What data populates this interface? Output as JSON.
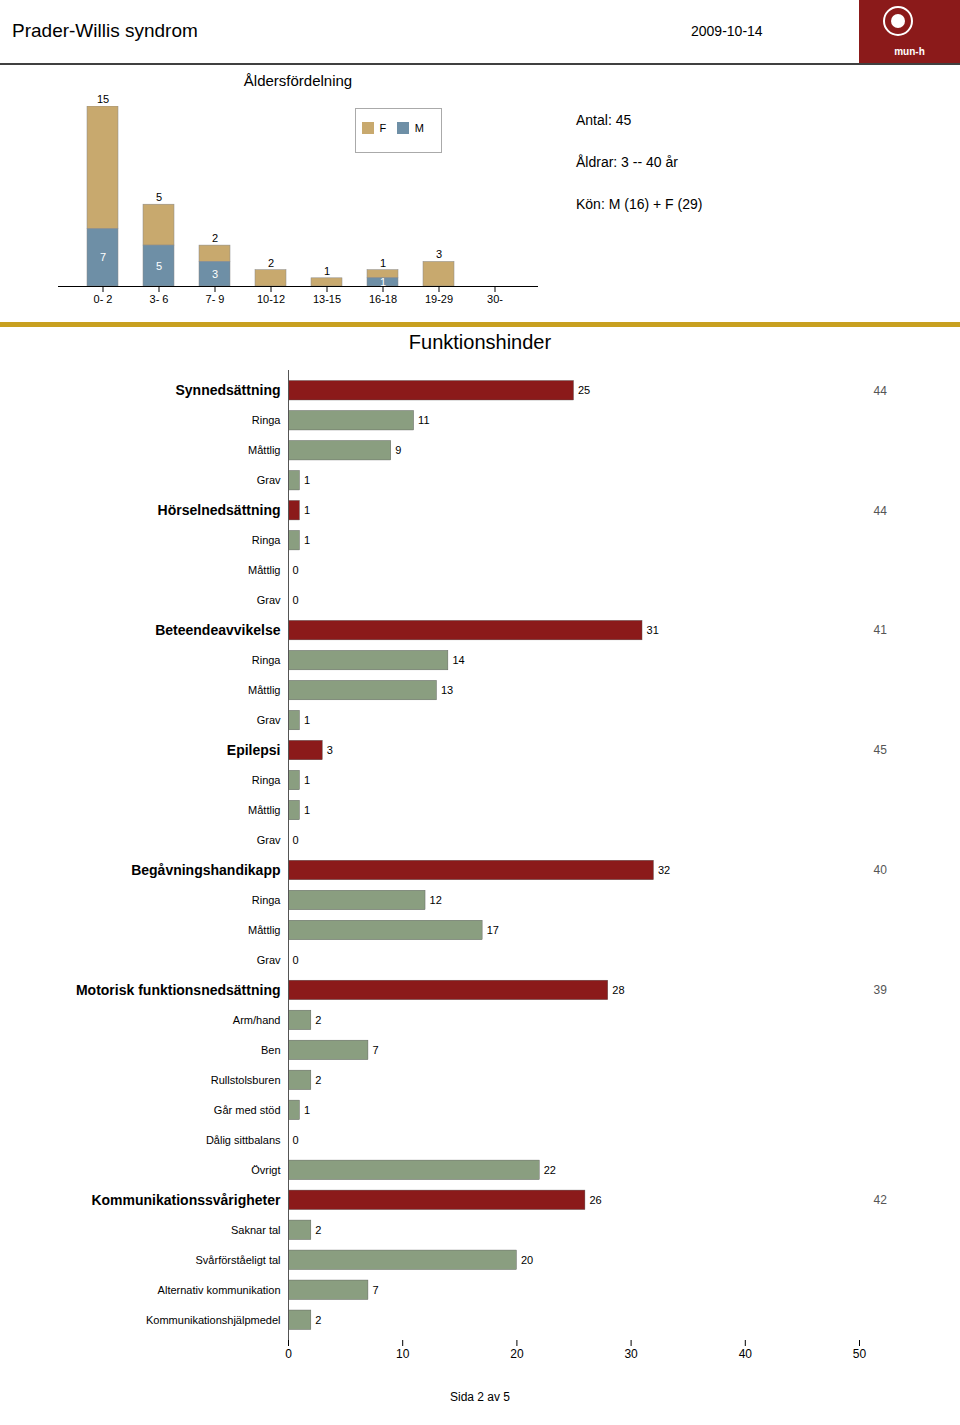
{
  "title": "Prader-Willis syndrom",
  "subtitle": "2009-10-14",
  "annotations": [
    "mun-h",
    "Sida 2 av 5"
  ],
  "chart_data": [
    {
      "type": "bar",
      "title": "Åldersfördelning",
      "categories": [
        "0- 2",
        "3- 6",
        "7- 9",
        "10-12",
        "13-15",
        "16-18",
        "19-29",
        "30-"
      ],
      "series": [
        {
          "name": "F",
          "color": "#c8a96e",
          "values": [
            15,
            5,
            2,
            2,
            1,
            1,
            3,
            0
          ]
        },
        {
          "name": "M",
          "color": "#6e8fa6",
          "values": [
            7,
            5,
            3,
            0,
            0,
            1,
            0,
            0
          ]
        }
      ],
      "stacked": true,
      "ylim": [
        0,
        22
      ],
      "tick_labels": "x",
      "data_labels": true,
      "legend": "upper right",
      "annotations": [
        "Antal: 45",
        "Åldrar: 3 -- 40 år",
        "Kön: M (16) + F (29)"
      ]
    },
    {
      "type": "bar",
      "orientation": "horizontal",
      "title": "Funktionshinder",
      "categories": [
        "Synnedsättning",
        "Ringa",
        "Måttlig",
        "Grav",
        "Hörselnedsättning",
        "Ringa",
        "Måttlig",
        "Grav",
        "Beteendeavvikelse",
        "Ringa",
        "Måttlig",
        "Grav",
        "Epilepsi",
        "Ringa",
        "Måttlig",
        "Grav",
        "Begåvningshandikapp",
        "Ringa",
        "Måttlig",
        "Grav",
        "Motorisk funktionsnedsättning",
        "Arm/hand",
        "Ben",
        "Rullstolsburen",
        "Går med stöd",
        "Dålig sittbalans",
        "Övrigt",
        "Kommunikationssvårigheter",
        "Saknar tal",
        "Svårförståeligt tal",
        "Alternativ kommunikation",
        "Kommunikationshjälpmedel"
      ],
      "values": [
        25,
        11,
        9,
        1,
        1,
        1,
        0,
        0,
        31,
        14,
        13,
        1,
        3,
        1,
        1,
        0,
        32,
        12,
        17,
        0,
        28,
        2,
        7,
        2,
        1,
        0,
        22,
        26,
        2,
        20,
        7,
        2
      ],
      "colors": [
        "#8b1a1a",
        "#8a9e80",
        "#8a9e80",
        "#8a9e80",
        "#8b1a1a",
        "#8a9e80",
        "#8a9e80",
        "#8a9e80",
        "#8b1a1a",
        "#8a9e80",
        "#8a9e80",
        "#8a9e80",
        "#8b1a1a",
        "#8a9e80",
        "#8a9e80",
        "#8a9e80",
        "#8b1a1a",
        "#8a9e80",
        "#8a9e80",
        "#8a9e80",
        "#8b1a1a",
        "#8a9e80",
        "#8a9e80",
        "#8a9e80",
        "#8a9e80",
        "#8a9e80",
        "#8a9e80",
        "#8b1a1a",
        "#8a9e80",
        "#8a9e80",
        "#8a9e80",
        "#8a9e80"
      ],
      "totals": [
        44,
        null,
        null,
        null,
        44,
        null,
        null,
        null,
        41,
        null,
        null,
        null,
        45,
        null,
        null,
        null,
        40,
        null,
        null,
        null,
        39,
        null,
        null,
        null,
        null,
        null,
        null,
        42,
        null,
        null,
        null,
        null
      ],
      "xlim": [
        0,
        50
      ],
      "xticks": [
        0,
        10,
        20,
        30,
        40,
        50
      ],
      "data_labels": true
    }
  ]
}
